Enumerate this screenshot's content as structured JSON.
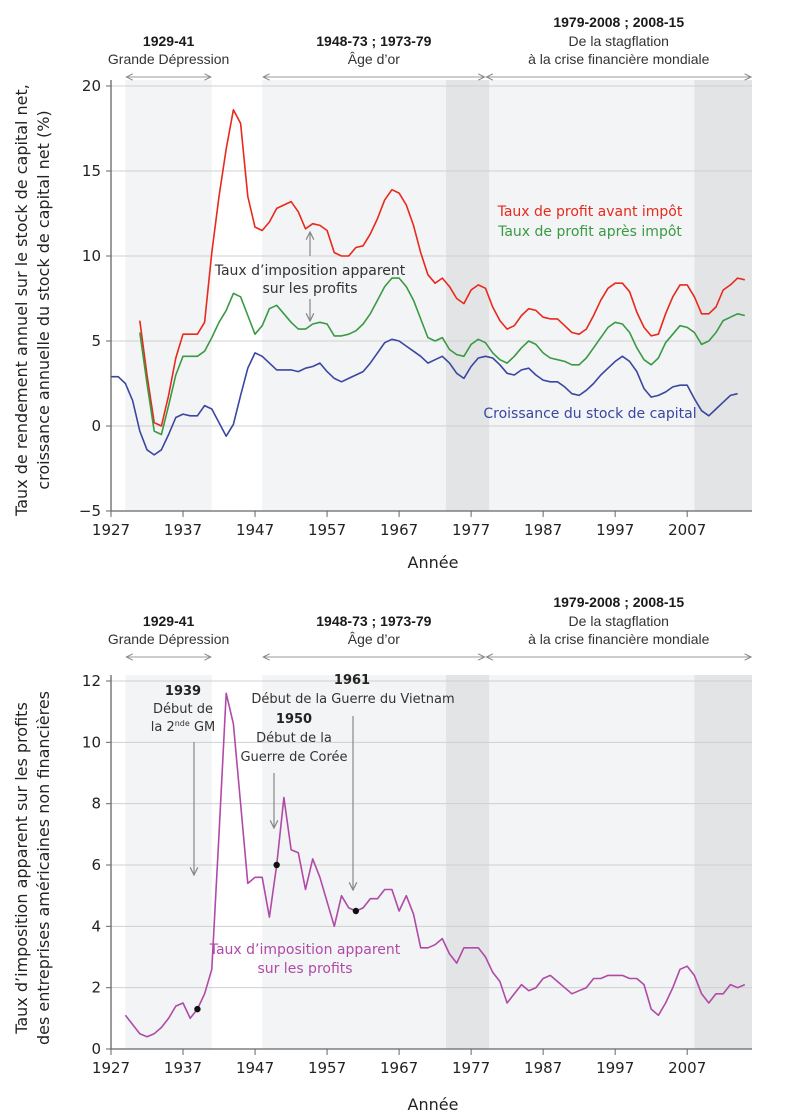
{
  "colors": {
    "pre_tax": "#e8291c",
    "post_tax": "#3a9a44",
    "capital": "#3a46a0",
    "tax": "#b04aa8",
    "shade_light": "#f3f4f5",
    "shade_dark": "#e3e4e6",
    "grid": "#d0d0d0"
  },
  "periods": [
    {
      "years": "1929-41",
      "label": "Grande Dépression",
      "lines": [],
      "start": 1929,
      "end": 1941,
      "shade": "light"
    },
    {
      "years": "1948-73 ; 1973-79",
      "label": "Âge d’or",
      "lines": [],
      "start": 1948,
      "end": 1973.5,
      "shade": "light"
    },
    {
      "years": "1979-2008 ; 2008-15",
      "label": "De la stagflation",
      "label2": "à la crise financière mondiale",
      "start": 1979,
      "end": 2008,
      "shade": "light"
    }
  ],
  "dark_shades": [
    {
      "start": 1973.5,
      "end": 1979.5
    },
    {
      "start": 2008,
      "end": 2016
    }
  ],
  "chart_data": [
    {
      "type": "line",
      "ylabel_line1": "Taux de rendement annuel sur le stock de capital net,",
      "ylabel_line2": "croissance annuelle du stock de capital net (%)",
      "xlabel": "Année",
      "xlim": [
        1927,
        2016
      ],
      "ylim": [
        -5,
        20
      ],
      "yticks": [
        "−5",
        "0",
        "5",
        "10",
        "15",
        "20"
      ],
      "ytick_values": [
        -5,
        0,
        5,
        10,
        15,
        20
      ],
      "xticks": [
        "1927",
        "1937",
        "1947",
        "1957",
        "1967",
        "1977",
        "1987",
        "1997",
        "2007"
      ],
      "grid": true,
      "annotation_line1": "Taux d’imposition apparent",
      "annotation_line2": "sur les profits",
      "series": [
        {
          "name": "Taux de profit avant impôt",
          "key": "pre_tax",
          "start_year": 1931,
          "values": [
            6.2,
            3.0,
            0.2,
            0.0,
            1.8,
            4.0,
            5.4,
            5.4,
            5.4,
            6.1,
            10.2,
            13.5,
            16.3,
            18.6,
            17.8,
            13.5,
            11.7,
            11.5,
            12.0,
            12.8,
            13.0,
            13.2,
            12.6,
            11.6,
            11.9,
            11.8,
            11.5,
            10.2,
            10.0,
            10.0,
            10.5,
            10.6,
            11.3,
            12.2,
            13.3,
            13.9,
            13.7,
            13.0,
            11.8,
            10.2,
            8.9,
            8.4,
            8.7,
            8.2,
            7.5,
            7.2,
            8.0,
            8.3,
            8.1,
            7.0,
            6.2,
            5.7,
            5.9,
            6.5,
            6.9,
            6.8,
            6.4,
            6.3,
            6.3,
            5.9,
            5.5,
            5.4,
            5.7,
            6.5,
            7.4,
            8.1,
            8.4,
            8.4,
            7.9,
            6.7,
            5.8,
            5.3,
            5.4,
            6.6,
            7.6,
            8.3,
            8.3,
            7.6,
            6.6,
            6.6,
            7.0,
            8.0,
            8.3,
            8.7,
            8.6
          ]
        },
        {
          "name": "Taux de profit après impôt",
          "key": "post_tax",
          "start_year": 1931,
          "values": [
            5.5,
            2.5,
            -0.3,
            -0.5,
            1.2,
            3.0,
            4.1,
            4.1,
            4.1,
            4.4,
            5.2,
            6.1,
            6.8,
            7.8,
            7.6,
            6.5,
            5.4,
            5.9,
            6.9,
            7.1,
            6.6,
            6.1,
            5.7,
            5.7,
            6.0,
            6.1,
            6.0,
            5.3,
            5.3,
            5.4,
            5.6,
            6.0,
            6.6,
            7.4,
            8.2,
            8.7,
            8.7,
            8.2,
            7.4,
            6.3,
            5.2,
            5.0,
            5.2,
            4.5,
            4.2,
            4.1,
            4.8,
            5.1,
            4.9,
            4.3,
            3.9,
            3.7,
            4.1,
            4.6,
            5.0,
            4.8,
            4.3,
            4.0,
            3.9,
            3.8,
            3.6,
            3.6,
            4.0,
            4.6,
            5.2,
            5.8,
            6.1,
            6.0,
            5.5,
            4.6,
            3.9,
            3.6,
            4.0,
            4.9,
            5.4,
            5.9,
            5.8,
            5.5,
            4.8,
            5.0,
            5.5,
            6.2,
            6.4,
            6.6,
            6.5
          ]
        },
        {
          "name": "Croissance du stock de capital",
          "key": "capital",
          "start_year": 1927,
          "values": [
            2.9,
            2.9,
            2.5,
            1.5,
            -0.3,
            -1.4,
            -1.7,
            -1.4,
            -0.5,
            0.5,
            0.7,
            0.6,
            0.6,
            1.2,
            1.0,
            0.2,
            -0.6,
            0.1,
            1.8,
            3.4,
            4.3,
            4.1,
            3.7,
            3.3,
            3.3,
            3.3,
            3.2,
            3.4,
            3.5,
            3.7,
            3.2,
            2.8,
            2.6,
            2.8,
            3.0,
            3.2,
            3.7,
            4.3,
            4.9,
            5.1,
            5.0,
            4.7,
            4.4,
            4.1,
            3.7,
            3.9,
            4.1,
            3.7,
            3.1,
            2.8,
            3.5,
            4.0,
            4.1,
            4.0,
            3.6,
            3.1,
            3.0,
            3.3,
            3.4,
            3.0,
            2.7,
            2.6,
            2.6,
            2.3,
            1.9,
            1.8,
            2.1,
            2.5,
            3.0,
            3.4,
            3.8,
            4.1,
            3.8,
            3.2,
            2.2,
            1.7,
            1.8,
            2.0,
            2.3,
            2.4,
            2.4,
            1.6,
            0.9,
            0.6,
            1.0,
            1.4,
            1.8,
            1.9
          ]
        }
      ]
    },
    {
      "type": "line",
      "ylabel_line1": "Taux d’imposition apparent sur les profits",
      "ylabel_line2": "des entreprises américaines non financières",
      "xlabel": "Année",
      "xlim": [
        1927,
        2016
      ],
      "ylim": [
        0,
        12
      ],
      "yticks": [
        "0",
        "2",
        "4",
        "6",
        "8",
        "10",
        "12"
      ],
      "ytick_values": [
        0,
        2,
        4,
        6,
        8,
        10,
        12
      ],
      "xticks": [
        "1927",
        "1937",
        "1947",
        "1957",
        "1967",
        "1977",
        "1987",
        "1997",
        "2007"
      ],
      "grid": true,
      "series": [
        {
          "name": "Taux d’imposition apparent sur les profits",
          "name_line1": "Taux d’imposition apparent",
          "name_line2": "sur les profits",
          "key": "tax",
          "start_year": 1929,
          "values": [
            1.1,
            0.8,
            0.5,
            0.4,
            0.5,
            0.7,
            1.0,
            1.4,
            1.5,
            1.0,
            1.3,
            1.8,
            2.6,
            7.0,
            11.6,
            10.6,
            8.0,
            5.4,
            5.6,
            5.6,
            4.3,
            6.0,
            8.2,
            6.5,
            6.4,
            5.2,
            6.2,
            5.6,
            4.8,
            4.0,
            5.0,
            4.6,
            4.5,
            4.6,
            4.9,
            4.9,
            5.2,
            5.2,
            4.5,
            5.0,
            4.4,
            3.3,
            3.3,
            3.4,
            3.6,
            3.1,
            2.8,
            3.3,
            3.3,
            3.3,
            3.0,
            2.5,
            2.2,
            1.5,
            1.8,
            2.1,
            1.9,
            2.0,
            2.3,
            2.4,
            2.2,
            2.0,
            1.8,
            1.9,
            2.0,
            2.3,
            2.3,
            2.4,
            2.4,
            2.4,
            2.3,
            2.3,
            2.1,
            1.3,
            1.1,
            1.5,
            2.0,
            2.6,
            2.7,
            2.4,
            1.8,
            1.5,
            1.8,
            1.8,
            2.1,
            2.0,
            2.1
          ]
        }
      ],
      "events": [
        {
          "year": 1939,
          "value": 1.3,
          "label_year": "1939",
          "line1": "Début de",
          "line2_main": "la 2",
          "line2_sup": "nde",
          "line2_end": " GM"
        },
        {
          "year": 1950,
          "value": 6.0,
          "label_year": "1950",
          "line1": "Début de la",
          "line2": "Guerre de Corée"
        },
        {
          "year": 1961,
          "value": 4.5,
          "label_year": "1961",
          "line1": "Début de la Guerre du Vietnam"
        }
      ]
    }
  ]
}
